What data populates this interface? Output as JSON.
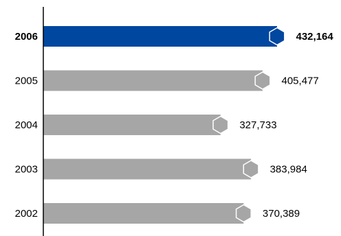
{
  "chart_data": {
    "type": "bar",
    "orientation": "horizontal",
    "categories": [
      "2006",
      "2005",
      "2004",
      "2003",
      "2002"
    ],
    "values": [
      432164,
      405477,
      327733,
      383984,
      370389
    ],
    "value_labels": [
      "432,164",
      "405,477",
      "327,733",
      "383,984",
      "370,389"
    ],
    "highlight_index": 0,
    "colors": {
      "highlight": "#0047a0",
      "default": "#a6a6a6"
    },
    "marker": "hexagon-end-cap",
    "grid": false,
    "legend": "none"
  }
}
